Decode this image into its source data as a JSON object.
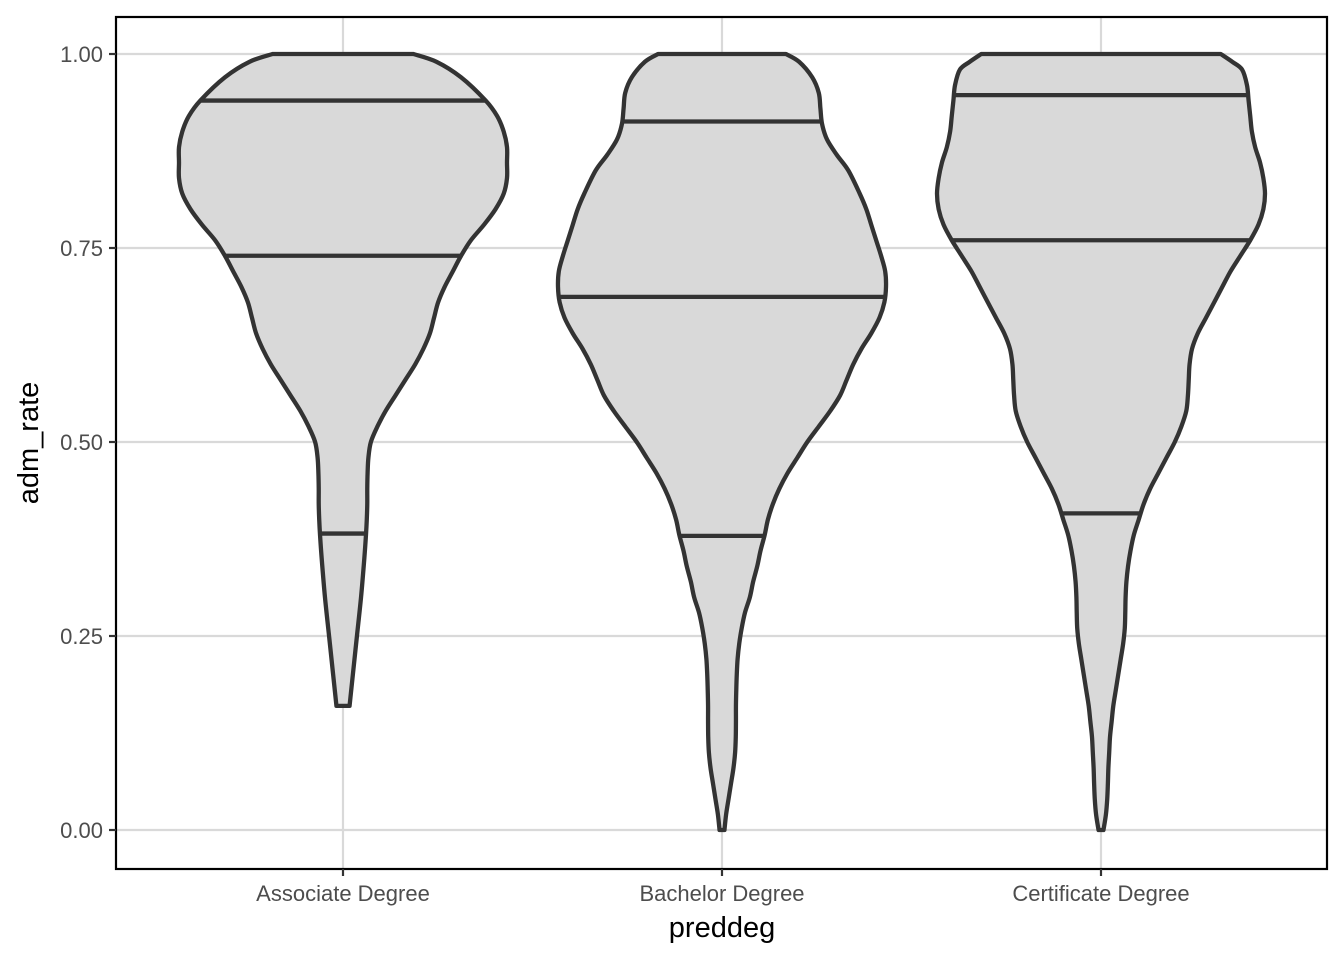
{
  "chart_data": {
    "type": "violin",
    "xlabel": "preddeg",
    "ylabel": "adm_rate",
    "categories": [
      "Associate Degree",
      "Bachelor Degree",
      "Certificate Degree"
    ],
    "ylim": [
      -0.05,
      1.05
    ],
    "yticks": [
      0.0,
      0.25,
      0.5,
      0.75,
      1.0
    ],
    "ytick_labels": [
      "0.00",
      "0.25",
      "0.50",
      "0.75",
      "1.00"
    ],
    "grid": true,
    "theme": "bw",
    "fill_color": "#d9d9d9",
    "line_color": "#333333",
    "grid_color": "#d9d9d9",
    "violins": [
      {
        "category": "Associate Degree",
        "min": 0.16,
        "max": 1.0,
        "quantiles": [
          0.382,
          0.74,
          0.94
        ],
        "density_profile": [
          [
            1.0,
            0.43
          ],
          [
            0.99,
            0.57
          ],
          [
            0.97,
            0.72
          ],
          [
            0.94,
            0.87
          ],
          [
            0.92,
            0.94
          ],
          [
            0.9,
            0.98
          ],
          [
            0.88,
            1.0
          ],
          [
            0.86,
            1.0
          ],
          [
            0.84,
            1.0
          ],
          [
            0.82,
            0.98
          ],
          [
            0.8,
            0.93
          ],
          [
            0.78,
            0.86
          ],
          [
            0.76,
            0.78
          ],
          [
            0.74,
            0.72
          ],
          [
            0.72,
            0.67
          ],
          [
            0.7,
            0.62
          ],
          [
            0.68,
            0.58
          ],
          [
            0.66,
            0.555
          ],
          [
            0.64,
            0.53
          ],
          [
            0.62,
            0.49
          ],
          [
            0.6,
            0.44
          ],
          [
            0.58,
            0.38
          ],
          [
            0.56,
            0.32
          ],
          [
            0.54,
            0.26
          ],
          [
            0.52,
            0.21
          ],
          [
            0.5,
            0.17
          ],
          [
            0.48,
            0.155
          ],
          [
            0.46,
            0.15
          ],
          [
            0.44,
            0.148
          ],
          [
            0.42,
            0.148
          ],
          [
            0.4,
            0.145
          ],
          [
            0.38,
            0.14
          ],
          [
            0.35,
            0.13
          ],
          [
            0.3,
            0.11
          ],
          [
            0.25,
            0.085
          ],
          [
            0.2,
            0.06
          ],
          [
            0.17,
            0.045
          ],
          [
            0.16,
            0.04
          ]
        ]
      },
      {
        "category": "Bachelor Degree",
        "min": 0.0,
        "max": 1.0,
        "quantiles": [
          0.379,
          0.687,
          0.913
        ],
        "density_profile": [
          [
            1.0,
            0.39
          ],
          [
            0.99,
            0.47
          ],
          [
            0.97,
            0.55
          ],
          [
            0.95,
            0.59
          ],
          [
            0.93,
            0.6
          ],
          [
            0.91,
            0.61
          ],
          [
            0.89,
            0.64
          ],
          [
            0.87,
            0.7
          ],
          [
            0.85,
            0.77
          ],
          [
            0.82,
            0.84
          ],
          [
            0.8,
            0.88
          ],
          [
            0.78,
            0.91
          ],
          [
            0.76,
            0.94
          ],
          [
            0.74,
            0.97
          ],
          [
            0.72,
            0.995
          ],
          [
            0.7,
            1.0
          ],
          [
            0.68,
            0.99
          ],
          [
            0.66,
            0.96
          ],
          [
            0.64,
            0.91
          ],
          [
            0.62,
            0.85
          ],
          [
            0.6,
            0.8
          ],
          [
            0.58,
            0.76
          ],
          [
            0.56,
            0.72
          ],
          [
            0.54,
            0.66
          ],
          [
            0.52,
            0.59
          ],
          [
            0.5,
            0.52
          ],
          [
            0.48,
            0.46
          ],
          [
            0.46,
            0.4
          ],
          [
            0.44,
            0.35
          ],
          [
            0.42,
            0.31
          ],
          [
            0.4,
            0.28
          ],
          [
            0.38,
            0.26
          ],
          [
            0.36,
            0.235
          ],
          [
            0.34,
            0.215
          ],
          [
            0.32,
            0.19
          ],
          [
            0.3,
            0.17
          ],
          [
            0.28,
            0.14
          ],
          [
            0.26,
            0.12
          ],
          [
            0.24,
            0.105
          ],
          [
            0.22,
            0.095
          ],
          [
            0.2,
            0.09
          ],
          [
            0.18,
            0.087
          ],
          [
            0.16,
            0.085
          ],
          [
            0.14,
            0.085
          ],
          [
            0.12,
            0.084
          ],
          [
            0.1,
            0.08
          ],
          [
            0.08,
            0.07
          ],
          [
            0.06,
            0.055
          ],
          [
            0.04,
            0.04
          ],
          [
            0.02,
            0.025
          ],
          [
            0.0,
            0.015
          ]
        ]
      },
      {
        "category": "Certificate Degree",
        "min": 0.0,
        "max": 1.0,
        "quantiles": [
          0.408,
          0.76,
          0.947
        ],
        "density_profile": [
          [
            1.0,
            0.73
          ],
          [
            0.99,
            0.8
          ],
          [
            0.98,
            0.86
          ],
          [
            0.96,
            0.89
          ],
          [
            0.94,
            0.9
          ],
          [
            0.92,
            0.91
          ],
          [
            0.9,
            0.92
          ],
          [
            0.88,
            0.94
          ],
          [
            0.86,
            0.97
          ],
          [
            0.84,
            0.99
          ],
          [
            0.82,
            1.0
          ],
          [
            0.8,
            0.99
          ],
          [
            0.78,
            0.96
          ],
          [
            0.76,
            0.91
          ],
          [
            0.74,
            0.85
          ],
          [
            0.72,
            0.79
          ],
          [
            0.7,
            0.74
          ],
          [
            0.68,
            0.69
          ],
          [
            0.66,
            0.64
          ],
          [
            0.64,
            0.59
          ],
          [
            0.62,
            0.555
          ],
          [
            0.6,
            0.54
          ],
          [
            0.58,
            0.535
          ],
          [
            0.56,
            0.53
          ],
          [
            0.54,
            0.52
          ],
          [
            0.52,
            0.49
          ],
          [
            0.5,
            0.45
          ],
          [
            0.48,
            0.4
          ],
          [
            0.46,
            0.35
          ],
          [
            0.44,
            0.3
          ],
          [
            0.42,
            0.26
          ],
          [
            0.4,
            0.23
          ],
          [
            0.38,
            0.2
          ],
          [
            0.36,
            0.18
          ],
          [
            0.34,
            0.165
          ],
          [
            0.32,
            0.155
          ],
          [
            0.3,
            0.15
          ],
          [
            0.28,
            0.148
          ],
          [
            0.26,
            0.145
          ],
          [
            0.24,
            0.135
          ],
          [
            0.22,
            0.12
          ],
          [
            0.2,
            0.105
          ],
          [
            0.18,
            0.09
          ],
          [
            0.16,
            0.075
          ],
          [
            0.14,
            0.065
          ],
          [
            0.12,
            0.055
          ],
          [
            0.1,
            0.05
          ],
          [
            0.08,
            0.045
          ],
          [
            0.06,
            0.042
          ],
          [
            0.04,
            0.038
          ],
          [
            0.02,
            0.03
          ],
          [
            0.0,
            0.015
          ]
        ]
      }
    ]
  }
}
